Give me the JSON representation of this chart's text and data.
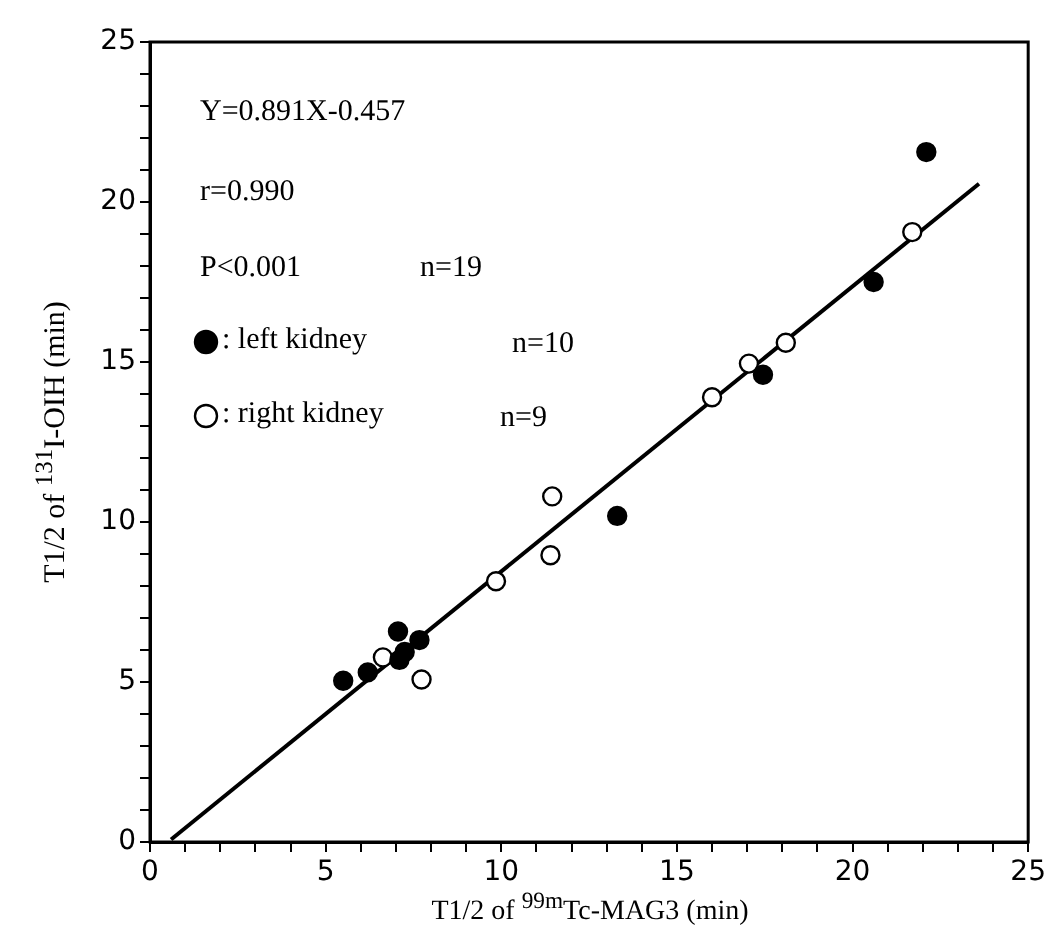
{
  "chart_data": {
    "type": "scatter",
    "xlabel": "T1/2 of $^{99m}$Tc-MAG3 (min)",
    "ylabel": "T1/2 of $^{131}$I-OIH (min)",
    "annotations": [
      "Y=0.891X-0.457",
      "r=0.990",
      "P<0.001",
      "n=19",
      "n=10",
      "n=9"
    ],
    "series": [
      {
        "name": ": left kidney",
        "color": "#000000",
        "marker": "circle",
        "x": [
          5.5,
          6.2,
          7.06,
          7.25,
          7.1,
          7.67,
          13.3,
          17.45,
          20.6,
          22.1
        ],
        "values": [
          5.04,
          5.3,
          6.58,
          5.94,
          5.69,
          6.31,
          10.19,
          14.6,
          17.5,
          21.56
        ]
      },
      {
        "name": ": right kidney",
        "color": "#ffffff",
        "marker": "circle",
        "x": [
          6.63,
          7.73,
          9.85,
          11.4,
          11.45,
          16.0,
          17.05,
          18.1,
          21.7
        ],
        "values": [
          5.77,
          5.08,
          8.15,
          8.96,
          10.8,
          13.9,
          14.95,
          15.6,
          19.06
        ]
      },
      {
        "type": "line",
        "color": "#000000",
        "marker": "none",
        "line_style": "solid",
        "x": [
          0.6,
          23.6
        ],
        "values": [
          0.08,
          20.57
        ]
      }
    ],
    "xlim": [
      0,
      25
    ],
    "ylim": [
      0,
      25
    ],
    "xticks": [
      0,
      {
        "value": 1,
        "label": null
      },
      {
        "value": 2,
        "label": null
      },
      {
        "value": 3,
        "label": null
      },
      {
        "value": 4,
        "label": null
      },
      5,
      {
        "value": 6,
        "label": null
      },
      {
        "value": 7,
        "label": null
      },
      {
        "value": 8,
        "label": null
      },
      {
        "value": 9,
        "label": null
      },
      10,
      {
        "value": 11,
        "label": null
      },
      {
        "value": 12,
        "label": null
      },
      {
        "value": 13,
        "label": null
      },
      {
        "value": 14,
        "label": null
      },
      15,
      {
        "value": 16,
        "label": null
      },
      {
        "value": 17,
        "label": null
      },
      {
        "value": 18,
        "label": null
      },
      {
        "value": 19,
        "label": null
      },
      20,
      {
        "value": 21,
        "label": null
      },
      {
        "value": 22,
        "label": null
      },
      {
        "value": 23,
        "label": null
      },
      {
        "value": 24,
        "label": null
      },
      25
    ],
    "yticks": [
      0,
      {
        "value": 1,
        "label": null
      },
      {
        "value": 2,
        "label": null
      },
      {
        "value": 3,
        "label": null
      },
      {
        "value": 4,
        "label": null
      },
      5,
      {
        "value": 6,
        "label": null
      },
      {
        "value": 7,
        "label": null
      },
      {
        "value": 8,
        "label": null
      },
      {
        "value": 9,
        "label": null
      },
      10,
      {
        "value": 11,
        "label": null
      },
      {
        "value": 12,
        "label": null
      },
      {
        "value": 13,
        "label": null
      },
      {
        "value": 14,
        "label": null
      },
      15,
      {
        "value": 16,
        "label": null
      },
      {
        "value": 17,
        "label": null
      },
      {
        "value": 18,
        "label": null
      },
      {
        "value": 19,
        "label": null
      },
      20,
      {
        "value": 21,
        "label": null
      },
      {
        "value": 22,
        "label": null
      },
      {
        "value": 23,
        "label": null
      },
      {
        "value": 24,
        "label": null
      },
      25
    ],
    "grid": false,
    "legend": "top left"
  }
}
